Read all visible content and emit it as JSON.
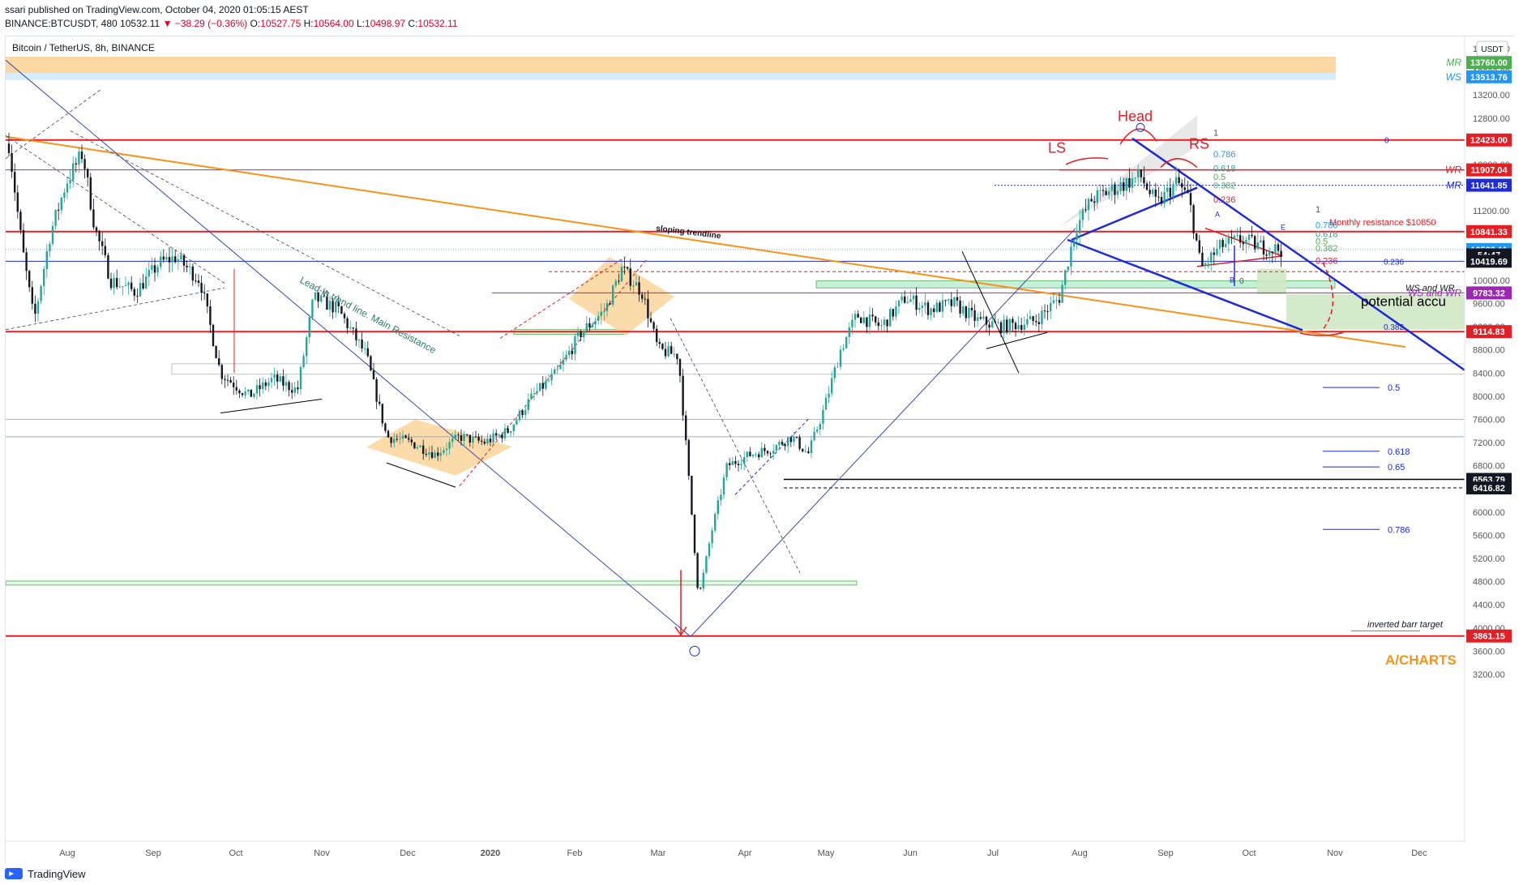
{
  "header": {
    "published": "ssari published on TradingView.com, October 04, 2020 01:05:15 AEST",
    "symbol": "BINANCE:BTCUSDT, 480",
    "last": "10532.11",
    "change": "▼ −38.29 (−0.36%)",
    "o_label": "O:",
    "o_value": "10527.75",
    "h_label": "H:",
    "h_value": "10564.00",
    "l_label": "L:",
    "l_value": "10498.97",
    "c_label": "C:",
    "c_value": "10532.11"
  },
  "chart_title": "Bitcoin / TetherUS, 8h, BINANCE",
  "currency_button": "USDT",
  "footer": {
    "brand": "TradingView"
  },
  "colors": {
    "up": "#26a69a",
    "down": "#ef5350",
    "red_line": "#e31e24",
    "blue": "#1e2bd6",
    "orange": "#f7931a",
    "text": "#131722"
  },
  "chart_data": {
    "type": "candlestick",
    "title": "Bitcoin / TetherUS, 8h, BINANCE",
    "ylim": [
      3000,
      14500
    ],
    "y_ticks": [
      3200,
      3600,
      4000,
      4400,
      4800,
      5200,
      5600,
      6000,
      6400,
      6800,
      7200,
      7600,
      8000,
      8400,
      8800,
      9200,
      9600,
      10000,
      10400,
      10800,
      11200,
      11600,
      12000,
      12400,
      12800,
      13200,
      13600,
      14000
    ],
    "x_labels": [
      "Aug",
      "Sep",
      "Oct",
      "Nov",
      "Dec",
      "2020",
      "Feb",
      "Mar",
      "Apr",
      "May",
      "Jun",
      "Jul",
      "Aug",
      "Sep",
      "Oct",
      "Nov",
      "Dec"
    ],
    "price_tags": [
      {
        "label": "MR",
        "value": "13760.00",
        "price": 13760,
        "color": "#4caf50"
      },
      {
        "label": "WS",
        "value": "13513.76",
        "price": 13513.76,
        "color": "#2196f3"
      },
      {
        "label": "",
        "value": "12423.00",
        "price": 12423,
        "color": "#e31e24"
      },
      {
        "label": "WR",
        "value": "11907.04",
        "price": 11907.04,
        "color": "#e31e24"
      },
      {
        "label": "MR",
        "value": "11641.85",
        "price": 11641.85,
        "color": "#1e2bd6"
      },
      {
        "label": "",
        "value": "10841.33",
        "price": 10841.33,
        "color": "#e31e24"
      },
      {
        "label": "",
        "value": "10532.11",
        "price": 10532.11,
        "color": "#2196f3"
      },
      {
        "label": "",
        "value": "54:47",
        "price": 10440,
        "color": "#131722"
      },
      {
        "label": "",
        "value": "10419.69",
        "price": 10330,
        "color": "#131722"
      },
      {
        "label": "WS and WR",
        "value": "9783.32",
        "price": 9783.32,
        "color": "#9c27b0"
      },
      {
        "label": "",
        "value": "9114.83",
        "price": 9114.83,
        "color": "#e31e24"
      },
      {
        "label": "",
        "value": "6563.79",
        "price": 6563.79,
        "color": "#131722"
      },
      {
        "label": "",
        "value": "6416.82",
        "price": 6416.82,
        "color": "#131722"
      },
      {
        "label": "",
        "value": "3861.15",
        "price": 3861.15,
        "color": "#e31e24"
      }
    ],
    "horizontal_levels": [
      12423,
      11907.04,
      11641.85,
      10841.33,
      9783.32,
      9114.83,
      6563.79,
      6416.82,
      3861.15
    ],
    "fib_labels": [
      "1",
      "0.786",
      "0.618",
      "0.5",
      "0.382",
      "0.236",
      "0"
    ],
    "fib_extension": [
      "0.5",
      "0.618",
      "0.65",
      "0.786"
    ],
    "pattern_labels": {
      "left_shoulder": "LS",
      "head": "Head",
      "right_shoulder": "RS"
    },
    "annotations": [
      "sloping trendline",
      "Lead-in trend line. Main Resistance",
      "Monthly resistance $10850",
      "potential accu",
      "WS and WR",
      "inverted barr target",
      "A/CHARTS",
      "0",
      "0.5",
      "0.618",
      "0.65",
      "0.786",
      "0.382",
      "0.236",
      "A",
      "B",
      "E"
    ]
  }
}
